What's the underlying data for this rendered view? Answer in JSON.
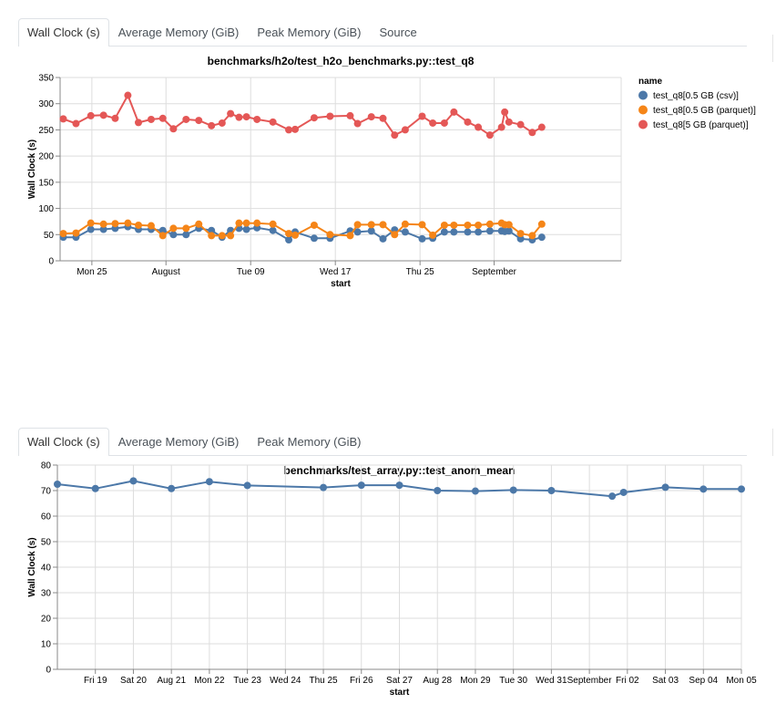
{
  "panels": [
    {
      "tabs": [
        "Wall Clock (s)",
        "Average Memory (GiB)",
        "Peak Memory (GiB)",
        "Source"
      ],
      "active_tab": 0
    },
    {
      "tabs": [
        "Wall Clock (s)",
        "Average Memory (GiB)",
        "Peak Memory (GiB)"
      ],
      "active_tab": 0
    }
  ],
  "legend_title": "name",
  "colors": {
    "series1": "#4c78a8",
    "series2": "#f58518",
    "series3": "#e45756",
    "grid": "#dddddd",
    "axis": "#888888"
  },
  "chart_data": [
    {
      "type": "line",
      "title": "benchmarks/h2o/test_h2o_benchmarks.py::test_q8",
      "xlabel": "start",
      "ylabel": "Wall Clock (s)",
      "ylim": [
        0,
        350
      ],
      "yticks": [
        0,
        50,
        100,
        150,
        200,
        250,
        300,
        350
      ],
      "xlim": [
        -3,
        50
      ],
      "xticks": [
        {
          "x": 0,
          "label": "Mon 25"
        },
        {
          "x": 7,
          "label": "August"
        },
        {
          "x": 15,
          "label": "Tue 09"
        },
        {
          "x": 23,
          "label": "Wed 17"
        },
        {
          "x": 31,
          "label": "Thu 25"
        },
        {
          "x": 38,
          "label": "September"
        }
      ],
      "legend": "right",
      "series": [
        {
          "name": "test_q8[0.5 GB (csv)]",
          "x": [
            -2.7,
            -1.5,
            -0.1,
            1.1,
            2.2,
            3.4,
            4.4,
            5.6,
            6.7,
            7.7,
            8.9,
            10.1,
            11.3,
            12.3,
            13.1,
            13.9,
            14.6,
            15.6,
            17.1,
            18.6,
            19.2,
            21.0,
            22.5,
            24.4,
            25.1,
            26.4,
            27.5,
            28.6,
            29.6,
            31.2,
            32.2,
            33.3,
            34.2,
            35.5,
            36.5,
            37.6,
            38.7,
            39.0,
            39.4,
            40.5,
            41.6,
            42.5
          ],
          "values": [
            45,
            45,
            60,
            60,
            62,
            65,
            60,
            60,
            58,
            50,
            50,
            62,
            58,
            45,
            58,
            62,
            60,
            63,
            58,
            40,
            55,
            43,
            43,
            57,
            55,
            57,
            42,
            59,
            55,
            42,
            43,
            55,
            55,
            55,
            55,
            57,
            57,
            56,
            57,
            42,
            40,
            45
          ]
        },
        {
          "name": "test_q8[0.5 GB (parquet)]",
          "x": [
            -2.7,
            -1.5,
            -0.1,
            1.1,
            2.2,
            3.4,
            4.4,
            5.6,
            6.7,
            7.7,
            8.9,
            10.1,
            11.3,
            12.3,
            13.1,
            13.9,
            14.6,
            15.6,
            17.1,
            18.6,
            19.2,
            21.0,
            22.5,
            24.4,
            25.1,
            26.4,
            27.5,
            28.6,
            29.6,
            31.2,
            32.2,
            33.3,
            34.2,
            35.5,
            36.5,
            37.6,
            38.7,
            39.0,
            39.4,
            40.5,
            41.6,
            42.5
          ],
          "values": [
            52,
            53,
            72,
            70,
            71,
            72,
            68,
            67,
            48,
            62,
            62,
            70,
            48,
            48,
            48,
            72,
            72,
            72,
            70,
            52,
            49,
            68,
            50,
            48,
            69,
            69,
            69,
            50,
            70,
            69,
            49,
            68,
            68,
            68,
            68,
            70,
            72,
            69,
            69,
            52,
            48,
            70
          ]
        },
        {
          "name": "test_q8[5 GB (parquet)]",
          "x": [
            -2.7,
            -1.5,
            -0.1,
            1.1,
            2.2,
            3.4,
            4.4,
            5.6,
            6.7,
            7.7,
            8.9,
            10.1,
            11.3,
            12.3,
            13.1,
            13.9,
            14.6,
            15.6,
            17.1,
            18.6,
            19.2,
            21.0,
            22.5,
            24.4,
            25.1,
            26.4,
            27.5,
            28.6,
            29.6,
            31.2,
            32.2,
            33.3,
            34.2,
            35.5,
            36.5,
            37.6,
            38.7,
            39.0,
            39.4,
            40.5,
            41.6,
            42.5
          ],
          "values": [
            271,
            262,
            277,
            278,
            272,
            316,
            264,
            270,
            272,
            252,
            270,
            268,
            258,
            263,
            281,
            274,
            275,
            270,
            265,
            250,
            251,
            273,
            276,
            277,
            262,
            275,
            272,
            240,
            250,
            276,
            263,
            263,
            284,
            265,
            255,
            240,
            255,
            284,
            265,
            260,
            245,
            255
          ]
        }
      ]
    },
    {
      "type": "line",
      "title": "benchmarks/test_array.py::test_anom_mean",
      "xlabel": "start",
      "ylabel": "Wall Clock (s)",
      "ylim": [
        0,
        80
      ],
      "yticks": [
        0,
        10,
        20,
        30,
        40,
        50,
        60,
        70,
        80
      ],
      "xlim": [
        0,
        18
      ],
      "xticks": [
        {
          "x": 1,
          "label": "Fri 19"
        },
        {
          "x": 2,
          "label": "Sat 20"
        },
        {
          "x": 3,
          "label": "Aug 21"
        },
        {
          "x": 4,
          "label": "Mon 22"
        },
        {
          "x": 5,
          "label": "Tue 23"
        },
        {
          "x": 6,
          "label": "Wed 24"
        },
        {
          "x": 7,
          "label": "Thu 25"
        },
        {
          "x": 8,
          "label": "Fri 26"
        },
        {
          "x": 9,
          "label": "Sat 27"
        },
        {
          "x": 10,
          "label": "Aug 28"
        },
        {
          "x": 11,
          "label": "Mon 29"
        },
        {
          "x": 12,
          "label": "Tue 30"
        },
        {
          "x": 13,
          "label": "Wed 31"
        },
        {
          "x": 14,
          "label": "September"
        },
        {
          "x": 15,
          "label": "Fri 02"
        },
        {
          "x": 16,
          "label": "Sat 03"
        },
        {
          "x": 17,
          "label": "Sep 04"
        },
        {
          "x": 18,
          "label": "Mon 05"
        }
      ],
      "series": [
        {
          "name": "test_anom_mean",
          "x": [
            0,
            1,
            2,
            3,
            4,
            5,
            7,
            8,
            9,
            10,
            11,
            12,
            13,
            14.6,
            14.9,
            16,
            17,
            18
          ],
          "values": [
            72.5,
            70.8,
            73.8,
            70.8,
            73.5,
            72.0,
            71.2,
            72.1,
            72.1,
            70.0,
            69.8,
            70.2,
            70.0,
            67.8,
            69.3,
            71.3,
            70.6,
            70.6
          ]
        }
      ]
    }
  ]
}
